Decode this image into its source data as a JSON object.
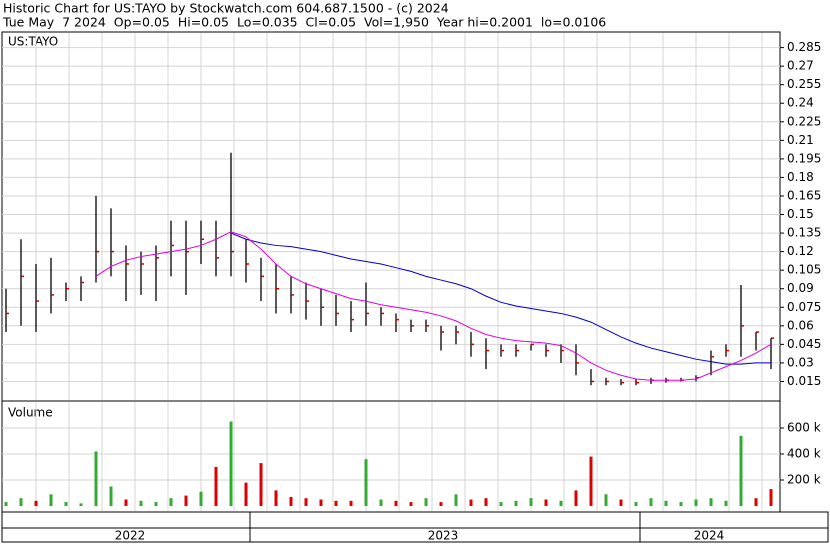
{
  "header": {
    "line1": "Historic Chart for US:TAYO by Stockwatch.com 604.687.1500 - (c) 2024",
    "line2": "Tue May  7 2024  Op=0.05  Hi=0.05  Lo=0.035  Cl=0.05  Vol=1,950  Year hi=0.2001  lo=0.0106"
  },
  "x_labels": [
    "2022",
    "2023",
    "2024"
  ],
  "chart_data": [
    {
      "type": "ohlc",
      "title": "US:TAYO",
      "color": "#000000",
      "close_color": "#cc0000",
      "high": [
        0.09,
        0.13,
        0.11,
        0.115,
        0.095,
        0.1,
        0.165,
        0.155,
        0.125,
        0.12,
        0.125,
        0.145,
        0.145,
        0.145,
        0.145,
        0.2,
        0.13,
        0.115,
        0.11,
        0.1,
        0.095,
        0.09,
        0.085,
        0.08,
        0.095,
        0.075,
        0.07,
        0.065,
        0.065,
        0.06,
        0.06,
        0.055,
        0.05,
        0.045,
        0.045,
        0.045,
        0.045,
        0.045,
        0.045,
        0.025,
        0.018,
        0.017,
        0.017,
        0.018,
        0.018,
        0.018,
        0.02,
        0.04,
        0.045,
        0.093,
        0.055,
        0.05
      ],
      "low": [
        0.055,
        0.06,
        0.055,
        0.07,
        0.08,
        0.08,
        0.095,
        0.1,
        0.08,
        0.085,
        0.08,
        0.1,
        0.085,
        0.11,
        0.1,
        0.1,
        0.095,
        0.08,
        0.07,
        0.07,
        0.065,
        0.06,
        0.06,
        0.055,
        0.06,
        0.06,
        0.055,
        0.055,
        0.055,
        0.04,
        0.045,
        0.035,
        0.025,
        0.035,
        0.035,
        0.04,
        0.035,
        0.03,
        0.02,
        0.012,
        0.012,
        0.012,
        0.012,
        0.013,
        0.014,
        0.015,
        0.015,
        0.02,
        0.035,
        0.035,
        0.04,
        0.025
      ],
      "close": [
        0.07,
        0.1,
        0.08,
        0.085,
        0.09,
        0.095,
        0.12,
        0.12,
        0.11,
        0.11,
        0.115,
        0.125,
        0.12,
        0.13,
        0.115,
        0.12,
        0.11,
        0.1,
        0.09,
        0.085,
        0.08,
        0.075,
        0.07,
        0.065,
        0.07,
        0.07,
        0.065,
        0.06,
        0.06,
        0.055,
        0.055,
        0.045,
        0.04,
        0.04,
        0.04,
        0.045,
        0.04,
        0.04,
        0.03,
        0.015,
        0.015,
        0.014,
        0.014,
        0.016,
        0.016,
        0.016,
        0.018,
        0.035,
        0.04,
        0.06,
        0.055,
        0.05
      ],
      "lines": [
        {
          "color": "#0000cc",
          "values": [
            null,
            null,
            null,
            null,
            null,
            null,
            null,
            null,
            null,
            null,
            null,
            null,
            null,
            null,
            null,
            0.135,
            0.13,
            0.127,
            0.125,
            0.124,
            0.122,
            0.12,
            0.117,
            0.114,
            0.112,
            0.11,
            0.107,
            0.104,
            0.1,
            0.097,
            0.094,
            0.09,
            0.084,
            0.079,
            0.076,
            0.074,
            0.072,
            0.07,
            0.067,
            0.063,
            0.057,
            0.051,
            0.046,
            0.042,
            0.039,
            0.036,
            0.033,
            0.031,
            0.029,
            0.029,
            0.03,
            0.03
          ]
        },
        {
          "color": "#dd00dd",
          "values": [
            null,
            null,
            null,
            null,
            null,
            null,
            0.1,
            0.108,
            0.113,
            0.116,
            0.118,
            0.12,
            0.122,
            0.125,
            0.13,
            0.136,
            0.132,
            0.122,
            0.11,
            0.1,
            0.094,
            0.09,
            0.086,
            0.082,
            0.08,
            0.077,
            0.075,
            0.073,
            0.071,
            0.068,
            0.064,
            0.058,
            0.053,
            0.05,
            0.048,
            0.047,
            0.046,
            0.044,
            0.038,
            0.03,
            0.024,
            0.02,
            0.017,
            0.016,
            0.016,
            0.016,
            0.017,
            0.022,
            0.027,
            0.032,
            0.038,
            0.045
          ]
        }
      ],
      "ylim": [
        0,
        0.296
      ],
      "yticks": [
        0.015,
        0.03,
        0.045,
        0.06,
        0.075,
        0.09,
        0.105,
        0.12,
        0.135,
        0.15,
        0.165,
        0.18,
        0.195,
        0.21,
        0.225,
        0.24,
        0.255,
        0.27,
        0.285
      ],
      "grid": true
    },
    {
      "type": "volume",
      "title": "Volume",
      "up_color": "#33aa33",
      "down_color": "#dd0000",
      "values": [
        30000,
        60000,
        40000,
        90000,
        30000,
        20000,
        420000,
        150000,
        50000,
        40000,
        30000,
        60000,
        80000,
        110000,
        300000,
        650000,
        180000,
        330000,
        120000,
        70000,
        60000,
        50000,
        40000,
        40000,
        360000,
        50000,
        40000,
        30000,
        60000,
        30000,
        90000,
        50000,
        60000,
        30000,
        40000,
        60000,
        50000,
        40000,
        120000,
        380000,
        90000,
        50000,
        30000,
        60000,
        40000,
        30000,
        50000,
        60000,
        40000,
        540000,
        60000,
        130000
      ],
      "ylim": [
        0,
        800000
      ],
      "yticks": [
        {
          "value": 200000,
          "label": "200 k"
        },
        {
          "value": 400000,
          "label": "400 k"
        },
        {
          "value": 600000,
          "label": "600 k"
        }
      ],
      "grid": true
    }
  ]
}
